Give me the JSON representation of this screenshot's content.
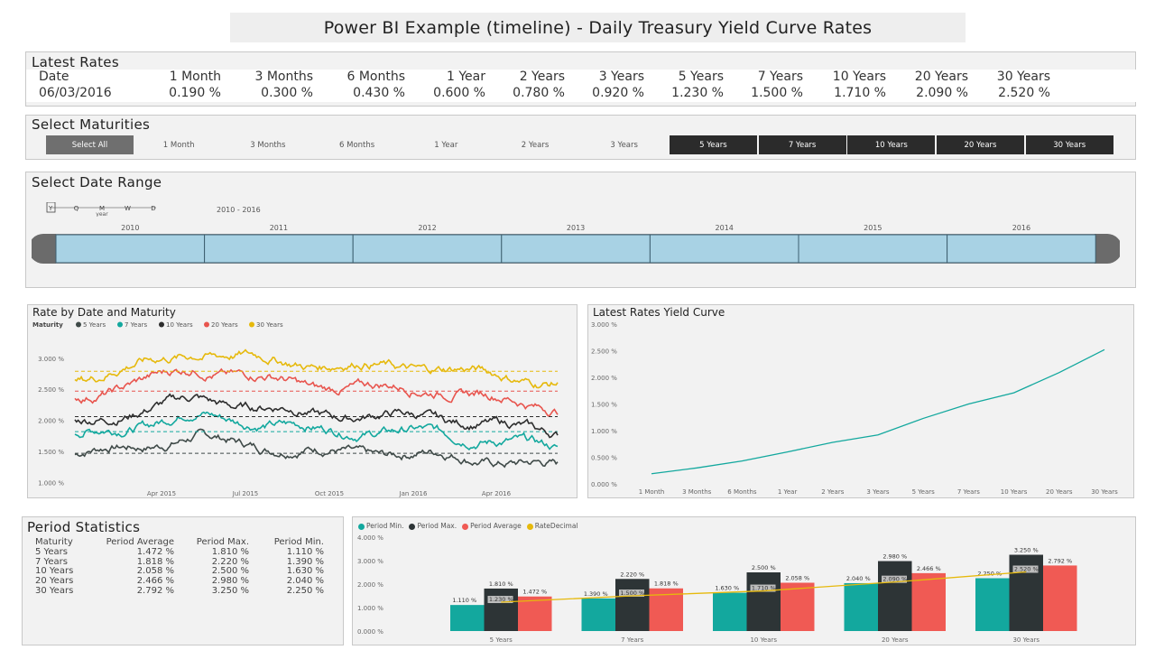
{
  "title": "Power BI Example (timeline) - Daily Treasury Yield Curve Rates",
  "latest": {
    "title": "Latest Rates",
    "headers": [
      "Date",
      "1 Month",
      "3 Months",
      "6 Months",
      "1 Year",
      "2 Years",
      "3 Years",
      "5 Years",
      "7 Years",
      "10 Years",
      "20 Years",
      "30 Years"
    ],
    "values": [
      "06/03/2016",
      "0.190 %",
      "0.300 %",
      "0.430 %",
      "0.600 %",
      "0.780 %",
      "0.920 %",
      "1.230 %",
      "1.500 %",
      "1.710 %",
      "2.090 %",
      "2.520 %"
    ]
  },
  "maturities": {
    "title": "Select Maturities",
    "buttons": [
      {
        "label": "Select All",
        "state": "all"
      },
      {
        "label": "1 Month",
        "state": "off"
      },
      {
        "label": "3 Months",
        "state": "off"
      },
      {
        "label": "6 Months",
        "state": "off"
      },
      {
        "label": "1 Year",
        "state": "off"
      },
      {
        "label": "2 Years",
        "state": "off"
      },
      {
        "label": "3 Years",
        "state": "off"
      },
      {
        "label": "5 Years",
        "state": "on"
      },
      {
        "label": "7 Years",
        "state": "on"
      },
      {
        "label": "10 Years",
        "state": "on"
      },
      {
        "label": "20 Years",
        "state": "on"
      },
      {
        "label": "30 Years",
        "state": "on"
      }
    ]
  },
  "date_range": {
    "title": "Select Date Range",
    "granularity": [
      "Y",
      "Q",
      "M",
      "W",
      "D"
    ],
    "granularity_label": "year",
    "range_label": "2010 - 2016",
    "years": [
      "2010",
      "2011",
      "2012",
      "2013",
      "2014",
      "2015",
      "2016"
    ]
  },
  "rate_chart": {
    "title": "Rate by Date and Maturity",
    "legend_title": "Maturity",
    "series_names": [
      "5 Years",
      "7 Years",
      "10 Years",
      "20 Years",
      "30 Years"
    ],
    "colors": [
      "#3f4a48",
      "#13a89e",
      "#2d2d2d",
      "#e8554e",
      "#e6b90c"
    ],
    "y_ticks": [
      "3.000 %",
      "2.500 %",
      "2.000 %",
      "1.500 %",
      "1.000 %"
    ],
    "x_ticks": [
      "Apr 2015",
      "Jul 2015",
      "Oct 2015",
      "Jan 2016",
      "Apr 2016"
    ]
  },
  "yield_chart": {
    "title": "Latest Rates Yield Curve",
    "y_ticks": [
      "3.000 %",
      "2.500 %",
      "2.000 %",
      "1.500 %",
      "1.000 %",
      "0.500 %",
      "0.000 %"
    ],
    "color": "#13a89e"
  },
  "stats": {
    "title": "Period Statistics",
    "headers": [
      "Maturity",
      "Period Average",
      "Period Max.",
      "Period Min."
    ],
    "rows": [
      [
        "5 Years",
        "1.472 %",
        "1.810 %",
        "1.110 %"
      ],
      [
        "7 Years",
        "1.818 %",
        "2.220 %",
        "1.390 %"
      ],
      [
        "10 Years",
        "2.058 %",
        "2.500 %",
        "1.630 %"
      ],
      [
        "20 Years",
        "2.466 %",
        "2.980 %",
        "2.040 %"
      ],
      [
        "30 Years",
        "2.792 %",
        "3.250 %",
        "2.250 %"
      ]
    ]
  },
  "bar_chart": {
    "legend": [
      "Period Min.",
      "Period Max.",
      "Period Average",
      "RateDecimal"
    ],
    "colors": [
      "#13a89e",
      "#2d3436",
      "#f05a54",
      "#e6b90c"
    ],
    "y_ticks": [
      "4.000 %",
      "3.000 %",
      "2.000 %",
      "1.000 %",
      "0.000 %"
    ],
    "value_labels": [
      [
        "1.110 %",
        "1.810 %",
        "1.472 %",
        "1.230 %"
      ],
      [
        "1.390 %",
        "2.220 %",
        "1.818 %",
        "1.500 %"
      ],
      [
        "1.630 %",
        "2.500 %",
        "2.058 %",
        "1.710 %"
      ],
      [
        "2.040 %",
        "2.980 %",
        "2.466 %",
        "2.090 %"
      ],
      [
        "2.250 %",
        "3.250 %",
        "2.792 %",
        "2.520 %"
      ]
    ]
  },
  "chart_data": [
    {
      "type": "line",
      "title": "Latest Rates Yield Curve",
      "categories": [
        "1 Month",
        "3 Months",
        "6 Months",
        "1 Year",
        "2 Years",
        "3 Years",
        "5 Years",
        "7 Years",
        "10 Years",
        "20 Years",
        "30 Years"
      ],
      "values": [
        0.19,
        0.3,
        0.43,
        0.6,
        0.78,
        0.92,
        1.23,
        1.5,
        1.71,
        2.09,
        2.52
      ],
      "ylim": [
        0,
        3
      ],
      "grid": false
    },
    {
      "type": "bar",
      "categories": [
        "5 Years",
        "7 Years",
        "10 Years",
        "20 Years",
        "30 Years"
      ],
      "series": [
        {
          "name": "Period Min.",
          "values": [
            1.11,
            1.39,
            1.63,
            2.04,
            2.25
          ]
        },
        {
          "name": "Period Max.",
          "values": [
            1.81,
            2.22,
            2.5,
            2.98,
            3.25
          ]
        },
        {
          "name": "Period Average",
          "values": [
            1.472,
            1.818,
            2.058,
            2.466,
            2.792
          ]
        },
        {
          "name": "RateDecimal",
          "values": [
            1.23,
            1.5,
            1.71,
            2.09,
            2.52
          ]
        }
      ],
      "ylim": [
        0,
        4
      ],
      "legend": "top-left"
    },
    {
      "type": "line",
      "title": "Rate by Date and Maturity",
      "x": [
        "Apr 2015",
        "Jul 2015",
        "Oct 2015",
        "Jan 2016",
        "Apr 2016"
      ],
      "series": [
        {
          "name": "5 Years",
          "values": [
            1.45,
            1.72,
            1.5,
            1.45,
            1.25
          ],
          "average": 1.47
        },
        {
          "name": "7 Years",
          "values": [
            1.75,
            2.1,
            1.85,
            1.8,
            1.55
          ],
          "average": 1.82
        },
        {
          "name": "10 Years",
          "values": [
            1.95,
            2.35,
            2.1,
            2.05,
            1.8
          ],
          "average": 2.06
        },
        {
          "name": "20 Years",
          "values": [
            2.35,
            2.85,
            2.55,
            2.5,
            2.2
          ],
          "average": 2.47
        },
        {
          "name": "30 Years",
          "values": [
            2.65,
            3.1,
            2.9,
            2.85,
            2.6
          ],
          "average": 2.79
        }
      ],
      "ylim": [
        0.95,
        3.2
      ]
    }
  ]
}
